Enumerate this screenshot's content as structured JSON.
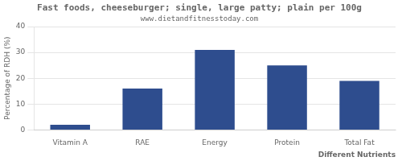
{
  "chart_data": {
    "type": "bar",
    "title": "Fast foods, cheeseburger; single, large patty; plain per 100g",
    "subtitle": "www.dietandfitnesstoday.com",
    "categories": [
      "Vitamin A",
      "RAE",
      "Energy",
      "Protein",
      "Total Fat"
    ],
    "values": [
      2.0,
      16.0,
      31.0,
      25.0,
      19.0
    ],
    "color": "#2e4d8e",
    "xlabel": "Different Nutrients",
    "ylabel": "Percentage of RDH (%)",
    "ylim": [
      0,
      40
    ],
    "yticks": [
      0,
      10,
      20,
      30,
      40
    ],
    "grid": true
  }
}
